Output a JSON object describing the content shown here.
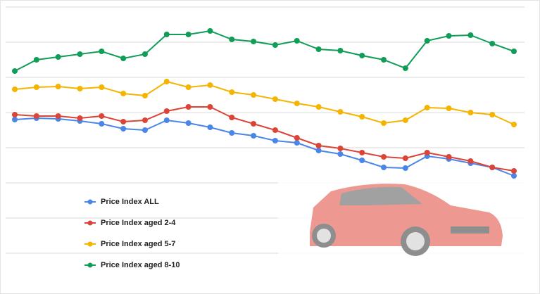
{
  "chart_data": {
    "type": "line",
    "categories": [
      null,
      null,
      null,
      null,
      null,
      null,
      null,
      null,
      null,
      null,
      null,
      null,
      null,
      null,
      null,
      null,
      null,
      null,
      null,
      null,
      null,
      null,
      null,
      null
    ],
    "series": [
      {
        "name": "Price Index ALL",
        "color": "#4a86e8",
        "values": [
          3.8,
          3.84,
          3.82,
          3.76,
          3.68,
          3.54,
          3.5,
          3.78,
          3.7,
          3.58,
          3.42,
          3.34,
          3.2,
          3.14,
          2.92,
          2.82,
          2.64,
          2.44,
          2.42,
          2.76,
          2.68,
          2.56,
          2.44,
          2.2
        ]
      },
      {
        "name": "Price Index aged 2-4",
        "color": "#db4437",
        "values": [
          3.94,
          3.9,
          3.9,
          3.84,
          3.9,
          3.74,
          3.78,
          4.04,
          4.16,
          4.16,
          3.86,
          3.68,
          3.5,
          3.28,
          3.06,
          2.98,
          2.86,
          2.74,
          2.7,
          2.86,
          2.74,
          2.62,
          2.44,
          2.34
        ]
      },
      {
        "name": "Price Index aged 5-7",
        "color": "#f4b400",
        "values": [
          4.66,
          4.72,
          4.74,
          4.68,
          4.72,
          4.54,
          4.48,
          4.88,
          4.72,
          4.78,
          4.58,
          4.5,
          4.38,
          4.26,
          4.16,
          4.02,
          3.88,
          3.7,
          3.78,
          4.14,
          4.12,
          4.0,
          3.94,
          3.66
        ]
      },
      {
        "name": "Price Index aged 8-10",
        "color": "#0f9d58",
        "values": [
          5.18,
          5.5,
          5.58,
          5.66,
          5.74,
          5.54,
          5.66,
          6.22,
          6.22,
          6.32,
          6.08,
          6.02,
          5.92,
          6.04,
          5.8,
          5.76,
          5.62,
          5.5,
          5.26,
          6.04,
          6.18,
          6.2,
          5.96,
          5.74
        ]
      }
    ],
    "ylim": [
      -1,
      7.2
    ],
    "yticks": [
      0,
      1,
      2,
      3,
      4,
      5,
      6,
      7
    ],
    "grid": true
  }
}
